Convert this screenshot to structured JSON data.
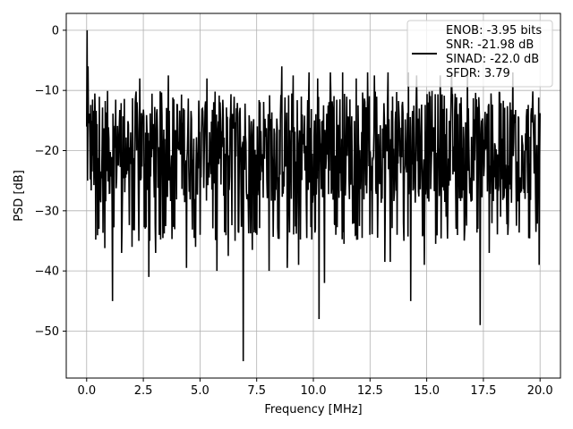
{
  "chart_data": {
    "type": "line",
    "title": "",
    "xlabel": "Frequency [MHz]",
    "ylabel": "PSD [dB]",
    "xlim": [
      -0.9,
      20.9
    ],
    "ylim": [
      -57.8,
      2.8
    ],
    "xticks": [
      0.0,
      2.5,
      5.0,
      7.5,
      10.0,
      12.5,
      15.0,
      17.5,
      20.0
    ],
    "xtick_labels": [
      "0.0",
      "2.5",
      "5.0",
      "7.5",
      "10.0",
      "12.5",
      "15.0",
      "17.5",
      "20.0"
    ],
    "yticks": [
      0,
      -10,
      -20,
      -30,
      -40,
      -50
    ],
    "ytick_labels": [
      "0",
      "−10",
      "−20",
      "−30",
      "−40",
      "−50"
    ],
    "grid": true,
    "legend_position": "top-right",
    "legend_entries": [
      "ENOB: -3.95 bits",
      "SNR: -21.98 dB",
      "SINAD: -22.0 dB",
      "SFDR: 3.79"
    ],
    "series": [
      {
        "color": "#000000",
        "x_range": [
          0.0,
          20.0
        ],
        "samples": 1000,
        "peak": [
          0.0,
          0.0
        ],
        "typical_band": [
          -32,
          -10
        ],
        "notable_dips": [
          [
            0.4,
            -34.8
          ],
          [
            0.55,
            -33.0
          ],
          [
            0.8,
            -36.2
          ],
          [
            1.15,
            -45.0
          ],
          [
            1.55,
            -37.0
          ],
          [
            2.0,
            -36.0
          ],
          [
            2.3,
            -35.0
          ],
          [
            2.75,
            -41.0
          ],
          [
            3.05,
            -33.0
          ],
          [
            3.05,
            -37.0
          ],
          [
            3.6,
            -34.0
          ],
          [
            4.4,
            -39.5
          ],
          [
            4.8,
            -36.0
          ],
          [
            5.0,
            -34.0
          ],
          [
            5.3,
            -42.7
          ],
          [
            5.75,
            -40.0
          ],
          [
            6.25,
            -37.5
          ],
          [
            6.55,
            -35.0
          ],
          [
            6.9,
            -55.0
          ],
          [
            7.3,
            -36.5
          ],
          [
            7.5,
            -34.0
          ],
          [
            8.05,
            -40.0
          ],
          [
            8.6,
            -35.5
          ],
          [
            8.85,
            -39.5
          ],
          [
            9.35,
            -39.0
          ],
          [
            10.1,
            -33.0
          ],
          [
            10.25,
            -48.0
          ],
          [
            10.5,
            -42.0
          ],
          [
            11.0,
            -34.0
          ],
          [
            11.35,
            -35.5
          ],
          [
            11.85,
            -34.0
          ],
          [
            12.5,
            -34.0
          ],
          [
            13.15,
            -38.5
          ],
          [
            13.4,
            -38.5
          ],
          [
            13.7,
            -34.0
          ],
          [
            14.0,
            -35.0
          ],
          [
            14.3,
            -45.0
          ],
          [
            14.9,
            -39.0
          ],
          [
            15.4,
            -35.5
          ],
          [
            15.85,
            -31.0
          ],
          [
            16.3,
            -33.0
          ],
          [
            17.25,
            -33.0
          ],
          [
            17.35,
            -49.0
          ],
          [
            17.75,
            -37.0
          ],
          [
            18.25,
            -31.0
          ],
          [
            18.6,
            -32.0
          ],
          [
            18.95,
            -32.5
          ],
          [
            19.95,
            -39.0
          ]
        ],
        "notable_peaks": [
          [
            0.05,
            -6.0
          ],
          [
            2.35,
            -8.0
          ],
          [
            3.6,
            -7.5
          ],
          [
            5.3,
            -8.0
          ],
          [
            8.6,
            -6.0
          ],
          [
            9.1,
            -7.5
          ],
          [
            9.8,
            -7.0
          ],
          [
            10.2,
            -8.0
          ],
          [
            10.75,
            -7.0
          ],
          [
            11.3,
            -7.0
          ],
          [
            11.9,
            -8.0
          ],
          [
            12.4,
            -7.0
          ],
          [
            12.7,
            -7.5
          ],
          [
            13.3,
            -7.0
          ],
          [
            14.2,
            -7.0
          ],
          [
            14.55,
            -7.5
          ],
          [
            15.6,
            -7.5
          ],
          [
            16.1,
            -7.0
          ],
          [
            16.8,
            -7.0
          ],
          [
            18.8,
            -7.0
          ]
        ]
      }
    ]
  }
}
